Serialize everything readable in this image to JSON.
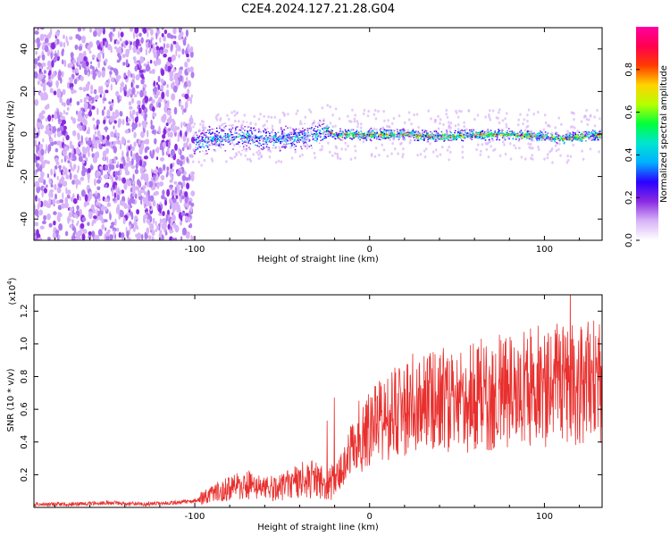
{
  "figure": {
    "title": "C2E4.2024.127.21.28.G04",
    "accent_color": "#e8302e"
  },
  "chart_data": [
    {
      "type": "heatmap",
      "name": "spectrogram",
      "xlabel": "Height of straight line (km)",
      "ylabel": "Frequency (Hz)",
      "xlim": [
        -192,
        133
      ],
      "ylim": [
        -50,
        50
      ],
      "x_ticks": [
        -100,
        0,
        100
      ],
      "y_ticks": [
        -40,
        -20,
        0,
        20,
        40
      ],
      "noise_region_x": [
        -192,
        -101
      ],
      "signal_track": {
        "x": [
          -101,
          -90,
          -80,
          -70,
          -60,
          -50,
          -40,
          -30,
          -25,
          -20,
          0,
          20,
          40,
          60,
          80,
          100,
          110,
          120,
          133
        ],
        "frequency": [
          -4,
          -2,
          -1,
          -1,
          -2,
          -2,
          -1,
          0,
          2,
          0,
          0,
          0,
          -1,
          0,
          0,
          -1,
          -2,
          -1,
          0
        ]
      },
      "colorbar": {
        "label": "Normalized spectral amplitude",
        "range": [
          0,
          1
        ],
        "ticks": [
          "0.0",
          "0.2",
          "0.4",
          "0.6",
          "0.8"
        ],
        "colors": [
          "#ffffff",
          "#d8b4f8",
          "#8a2be2",
          "#2b00ff",
          "#00b0ff",
          "#00e5d0",
          "#00ff3c",
          "#b6ff00",
          "#ffd400",
          "#ff3c00",
          "#ff0050",
          "#ff00a0"
        ]
      }
    },
    {
      "type": "line",
      "name": "snr",
      "xlabel": "Height of straight line (km)",
      "ylabel": "SNR (10 * v/v)",
      "scale_label": "(x10",
      "scale_exponent": "4",
      "scale_close": ")",
      "xlim": [
        -192,
        133
      ],
      "ylim": [
        0,
        1.3
      ],
      "x_ticks": [
        -100,
        0,
        100
      ],
      "y_ticks": [
        "0.2",
        "0.4",
        "0.6",
        "0.8",
        "1.0",
        "1.2"
      ],
      "color": "#e8302e",
      "series": [
        {
          "x": [
            -192,
            -170,
            -150,
            -130,
            -110,
            -100,
            -95,
            -90,
            -80,
            -70,
            -60,
            -50,
            -45,
            -40,
            -35,
            -30,
            -25,
            -20,
            -15,
            -10,
            -5,
            0,
            10,
            20,
            30,
            40,
            50,
            60,
            70,
            80,
            90,
            100,
            110,
            120,
            133
          ],
          "y": [
            0.02,
            0.02,
            0.03,
            0.02,
            0.03,
            0.04,
            0.06,
            0.08,
            0.12,
            0.14,
            0.11,
            0.12,
            0.14,
            0.16,
            0.18,
            0.16,
            0.14,
            0.16,
            0.25,
            0.35,
            0.42,
            0.48,
            0.55,
            0.6,
            0.62,
            0.66,
            0.62,
            0.68,
            0.7,
            0.72,
            0.74,
            0.72,
            0.76,
            0.75,
            0.78
          ]
        }
      ]
    }
  ]
}
